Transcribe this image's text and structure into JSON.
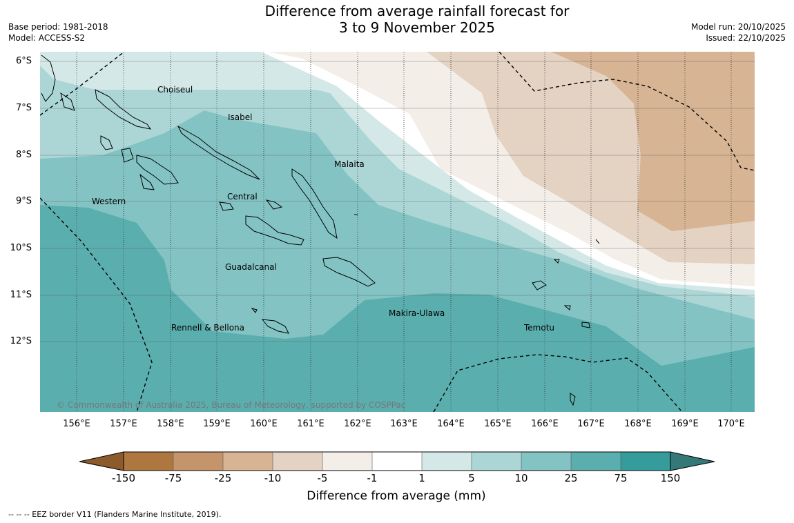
{
  "title": {
    "line1": "Difference from average rainfall forecast for",
    "line2": "3 to 9 November 2025"
  },
  "meta": {
    "base_period": "Base period: 1981-2018",
    "model": "Model: ACCESS-S2",
    "model_run": "Model run: 20/10/2025",
    "issued": "Issued: 22/10/2025"
  },
  "map": {
    "latitude_labels": [
      "6°S",
      "7°S",
      "8°S",
      "9°S",
      "10°S",
      "11°S",
      "12°S"
    ],
    "longitude_labels": [
      "156°E",
      "157°E",
      "158°E",
      "159°E",
      "160°E",
      "161°E",
      "162°E",
      "163°E",
      "164°E",
      "165°E",
      "166°E",
      "167°E",
      "168°E",
      "169°E",
      "170°E"
    ],
    "place_labels": [
      "Choiseul",
      "Isabel",
      "Malaita",
      "Western",
      "Central",
      "Guadalcanal",
      "Makira-Ulawa",
      "Rennell & Bellona",
      "Temotu"
    ],
    "copyright": "© Commonwealth of Australia 2025, Bureau of Meteorology, supported by COSPPac"
  },
  "colorbar": {
    "ticks": [
      "-150",
      "-75",
      "-25",
      "-10",
      "-5",
      "-1",
      "1",
      "5",
      "10",
      "25",
      "75",
      "150"
    ],
    "colors": [
      "#8c5a2b",
      "#ad773f",
      "#c4956a",
      "#d6b494",
      "#e4d2c2",
      "#f4eee9",
      "#ffffff",
      "#d4e8e8",
      "#acd6d6",
      "#84c3c3",
      "#5baeae",
      "#359b9b",
      "#357878"
    ],
    "title": "Difference from average (mm)"
  },
  "footnote": "--  --  -- EEZ border V11 (Flanders Marine Institute, 2019)."
}
